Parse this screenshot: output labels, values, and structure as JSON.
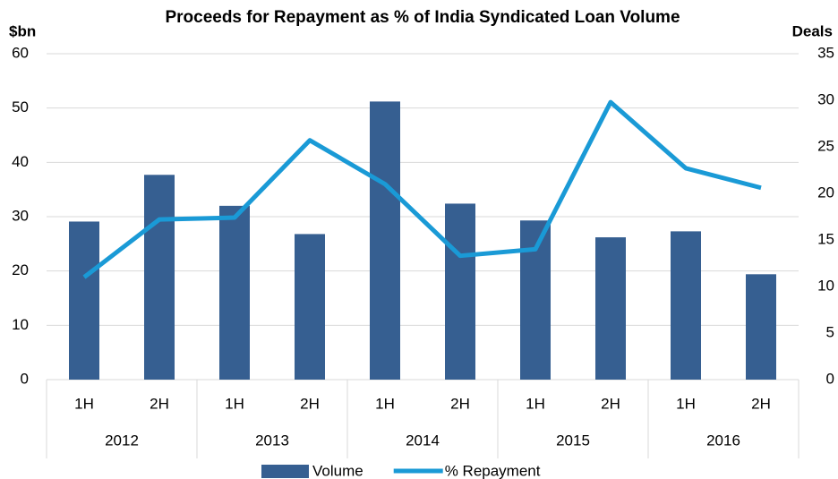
{
  "chart_data": {
    "type": "bar_line",
    "title": "Proceeds for Repayment as % of India Syndicated Loan Volume",
    "y_label": "$bn",
    "y2_label": "Deals",
    "categories": [
      "1H",
      "2H",
      "1H",
      "2H",
      "1H",
      "2H",
      "1H",
      "2H",
      "1H",
      "2H"
    ],
    "groups": [
      "2012",
      "2013",
      "2014",
      "2015",
      "2016"
    ],
    "series": [
      {
        "name": "Volume",
        "type": "bar",
        "color": "#365f91",
        "values": [
          29.1,
          37.7,
          32,
          26.8,
          51.2,
          32.4,
          29.3,
          26.2,
          27.3,
          19.4
        ]
      },
      {
        "name": "% Repayment",
        "type": "line",
        "axis": "y2",
        "color": "#1a9ad6",
        "values": [
          11.0,
          17.2,
          17.4,
          25.7,
          21.0,
          13.3,
          14.0,
          29.8,
          22.7,
          20.6
        ]
      }
    ],
    "ylim": [
      0,
      60
    ],
    "yticks": [
      0,
      10,
      20,
      30,
      40,
      50,
      60
    ],
    "y2lim": [
      0,
      35
    ],
    "y2ticks": [
      0,
      5,
      10,
      15,
      20,
      25,
      30,
      35
    ],
    "grid": true,
    "legend": "bottom"
  }
}
